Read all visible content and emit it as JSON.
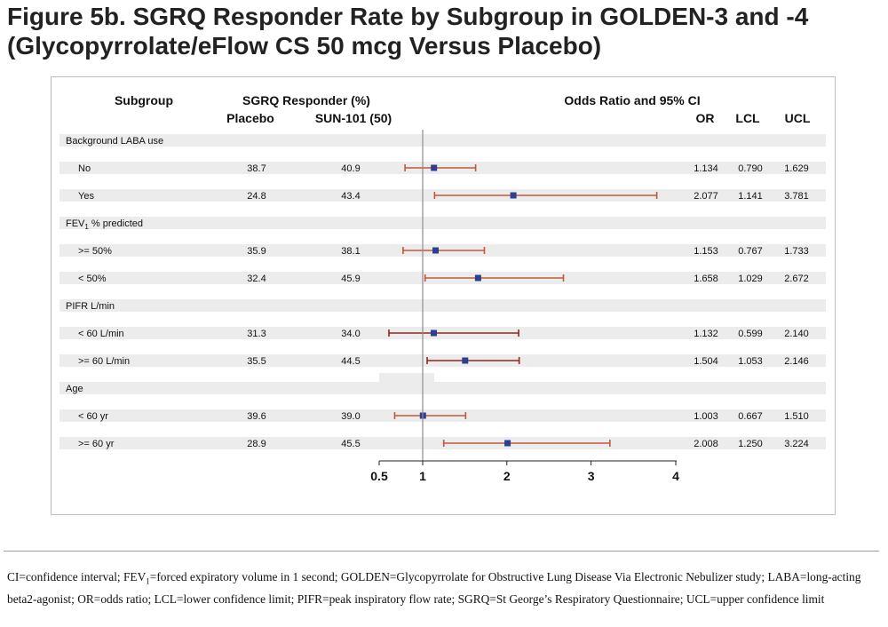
{
  "figure": {
    "title": "Figure 5b. SGRQ Responder Rate by Subgroup in GOLDEN-3 and -4 (Glycopyrrolate/eFlow CS 50 mcg Versus Placebo)",
    "footnote": "CI=confidence interval; FEV1=forced expiratory volume in 1 second; GOLDEN=Glycopyrrolate for Obstructive Lung Disease Via Electronic Nebulizer study; LABA=long-acting beta2-agonist; OR=odds ratio; LCL=lower confidence limit; PIFR=peak inspiratory flow rate; SGRQ=St George’s Respiratory Questionnaire; UCL=upper confidence limit"
  },
  "colors": {
    "point": "#2e3f8f",
    "ci_line": "#c0583a",
    "ci_line_dark": "#8b2a1c",
    "row_band": "#ececec",
    "ref_line": "#8c8c8c"
  },
  "chart_data": {
    "type": "forest",
    "headers": {
      "subgroup": "Subgroup",
      "responder": "SGRQ Responder (%)",
      "placebo": "Placebo",
      "active": "SUN-101 (50)",
      "plot": "Odds Ratio and 95% CI",
      "or": "OR",
      "lcl": "LCL",
      "ucl": "UCL"
    },
    "reference_line": 1,
    "x_ticks": [
      "0.5",
      "1",
      "2",
      "3",
      "4"
    ],
    "xlim": [
      0.5,
      4
    ],
    "groups": [
      {
        "label": "Background LABA use",
        "rows": [
          {
            "label": "No",
            "placebo": "38.7",
            "active": "40.9",
            "or": "1.134",
            "lcl": "0.790",
            "ucl": "1.629",
            "or_value": 1.134,
            "lcl_value": 0.79,
            "ucl_value": 1.629
          },
          {
            "label": "Yes",
            "placebo": "24.8",
            "active": "43.4",
            "or": "2.077",
            "lcl": "1.141",
            "ucl": "3.781",
            "or_value": 2.077,
            "lcl_value": 1.141,
            "ucl_value": 3.781
          }
        ]
      },
      {
        "label_main": "FEV",
        "label_sub": "1",
        "label_rest": " % predicted",
        "rows": [
          {
            "label": ">= 50%",
            "placebo": "35.9",
            "active": "38.1",
            "or": "1.153",
            "lcl": "0.767",
            "ucl": "1.733",
            "or_value": 1.153,
            "lcl_value": 0.767,
            "ucl_value": 1.733
          },
          {
            "label": "< 50%",
            "placebo": "32.4",
            "active": "45.9",
            "or": "1.658",
            "lcl": "1.029",
            "ucl": "2.672",
            "or_value": 1.658,
            "lcl_value": 1.029,
            "ucl_value": 2.672
          }
        ]
      },
      {
        "label": "PIFR L/min",
        "rows": [
          {
            "label": "< 60 L/min",
            "placebo": "31.3",
            "active": "34.0",
            "or": "1.132",
            "lcl": "0.599",
            "ucl": "2.140",
            "or_value": 1.132,
            "lcl_value": 0.599,
            "ucl_value": 2.14
          },
          {
            "label": ">= 60 L/min",
            "placebo": "35.5",
            "active": "44.5",
            "or": "1.504",
            "lcl": "1.053",
            "ucl": "2.146",
            "or_value": 1.504,
            "lcl_value": 1.053,
            "ucl_value": 2.146
          }
        ]
      },
      {
        "label": "Age",
        "rows": [
          {
            "label": "< 60 yr",
            "placebo": "39.6",
            "active": "39.0",
            "or": "1.003",
            "lcl": "0.667",
            "ucl": "1.510",
            "or_value": 1.003,
            "lcl_value": 0.667,
            "ucl_value": 1.51
          },
          {
            "label": ">= 60 yr",
            "placebo": "28.9",
            "active": "45.5",
            "or": "2.008",
            "lcl": "1.250",
            "ucl": "3.224",
            "or_value": 2.008,
            "lcl_value": 1.25,
            "ucl_value": 3.224
          }
        ]
      }
    ]
  }
}
